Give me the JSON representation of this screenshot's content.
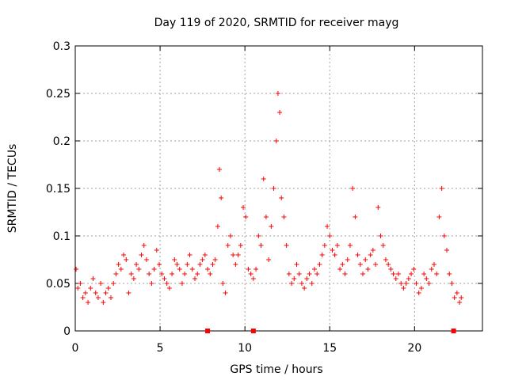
{
  "chart_data": {
    "type": "scatter",
    "title": "Day 119 of 2020, SRMTID for receiver mayg",
    "xlabel": "GPS time / hours",
    "ylabel": "SRMTID / TECUs",
    "xlim": [
      0,
      24
    ],
    "ylim": [
      0,
      0.3
    ],
    "x_ticks": [
      0,
      5,
      10,
      15,
      20
    ],
    "x_tick_labels": [
      "0",
      "5",
      "10",
      "15",
      "20"
    ],
    "y_ticks": [
      0,
      0.05,
      0.1,
      0.15,
      0.2,
      0.25,
      0.3
    ],
    "y_tick_labels": [
      "0",
      "0.05",
      "0.1",
      "0.15",
      "0.2",
      "0.25",
      "0.3"
    ],
    "grid": true,
    "marker": "plus",
    "color": "#ff0000",
    "series": [
      {
        "name": "SRMTID",
        "x": [
          0.05,
          0.15,
          0.3,
          0.45,
          0.6,
          0.75,
          0.9,
          1.05,
          1.2,
          1.35,
          1.5,
          1.65,
          1.8,
          1.95,
          2.1,
          2.25,
          2.4,
          2.55,
          2.7,
          2.85,
          3.0,
          3.15,
          3.3,
          3.45,
          3.6,
          3.75,
          3.9,
          4.05,
          4.2,
          4.35,
          4.5,
          4.65,
          4.8,
          4.95,
          5.1,
          5.25,
          5.4,
          5.55,
          5.7,
          5.85,
          6.0,
          6.15,
          6.3,
          6.45,
          6.6,
          6.75,
          6.9,
          7.05,
          7.2,
          7.35,
          7.5,
          7.65,
          7.8,
          7.95,
          8.1,
          8.25,
          8.4,
          8.5,
          8.6,
          8.7,
          8.85,
          9.0,
          9.15,
          9.3,
          9.45,
          9.6,
          9.75,
          9.9,
          10.05,
          10.2,
          10.35,
          10.5,
          10.65,
          10.8,
          10.95,
          11.1,
          11.25,
          11.4,
          11.55,
          11.7,
          11.85,
          11.95,
          12.05,
          12.15,
          12.3,
          12.45,
          12.6,
          12.75,
          12.9,
          13.05,
          13.2,
          13.35,
          13.5,
          13.65,
          13.8,
          13.95,
          14.1,
          14.25,
          14.4,
          14.55,
          14.7,
          14.85,
          15.0,
          15.15,
          15.3,
          15.45,
          15.6,
          15.75,
          15.9,
          16.05,
          16.2,
          16.35,
          16.5,
          16.65,
          16.8,
          16.95,
          17.1,
          17.25,
          17.4,
          17.55,
          17.7,
          17.85,
          18.0,
          18.15,
          18.3,
          18.45,
          18.6,
          18.75,
          18.9,
          19.05,
          19.2,
          19.35,
          19.5,
          19.65,
          19.8,
          19.95,
          20.1,
          20.25,
          20.4,
          20.55,
          20.7,
          20.85,
          21.0,
          21.15,
          21.3,
          21.45,
          21.6,
          21.75,
          21.9,
          22.05,
          22.2,
          22.35,
          22.5,
          22.65,
          22.75
        ],
        "y": [
          0.065,
          0.045,
          0.05,
          0.035,
          0.04,
          0.03,
          0.045,
          0.055,
          0.04,
          0.035,
          0.05,
          0.03,
          0.04,
          0.045,
          0.035,
          0.05,
          0.06,
          0.07,
          0.065,
          0.08,
          0.075,
          0.04,
          0.06,
          0.055,
          0.07,
          0.065,
          0.08,
          0.09,
          0.075,
          0.06,
          0.05,
          0.065,
          0.085,
          0.07,
          0.06,
          0.055,
          0.05,
          0.045,
          0.06,
          0.075,
          0.07,
          0.065,
          0.05,
          0.06,
          0.07,
          0.08,
          0.065,
          0.055,
          0.06,
          0.07,
          0.075,
          0.08,
          0.065,
          0.06,
          0.07,
          0.075,
          0.11,
          0.17,
          0.14,
          0.05,
          0.04,
          0.09,
          0.1,
          0.08,
          0.07,
          0.08,
          0.09,
          0.13,
          0.12,
          0.065,
          0.06,
          0.055,
          0.065,
          0.1,
          0.09,
          0.16,
          0.12,
          0.075,
          0.11,
          0.15,
          0.2,
          0.25,
          0.23,
          0.14,
          0.12,
          0.09,
          0.06,
          0.05,
          0.055,
          0.07,
          0.06,
          0.05,
          0.045,
          0.055,
          0.06,
          0.05,
          0.065,
          0.06,
          0.07,
          0.08,
          0.09,
          0.11,
          0.1,
          0.085,
          0.08,
          0.09,
          0.065,
          0.07,
          0.06,
          0.075,
          0.09,
          0.15,
          0.12,
          0.08,
          0.07,
          0.06,
          0.075,
          0.065,
          0.08,
          0.085,
          0.07,
          0.13,
          0.1,
          0.09,
          0.075,
          0.07,
          0.065,
          0.06,
          0.055,
          0.06,
          0.05,
          0.045,
          0.05,
          0.055,
          0.06,
          0.065,
          0.05,
          0.04,
          0.045,
          0.06,
          0.055,
          0.05,
          0.065,
          0.07,
          0.06,
          0.12,
          0.15,
          0.1,
          0.085,
          0.06,
          0.05,
          0.035,
          0.04,
          0.03,
          0.035
        ]
      }
    ],
    "markers_on_axis": [
      7.8,
      10.5,
      22.3
    ]
  }
}
